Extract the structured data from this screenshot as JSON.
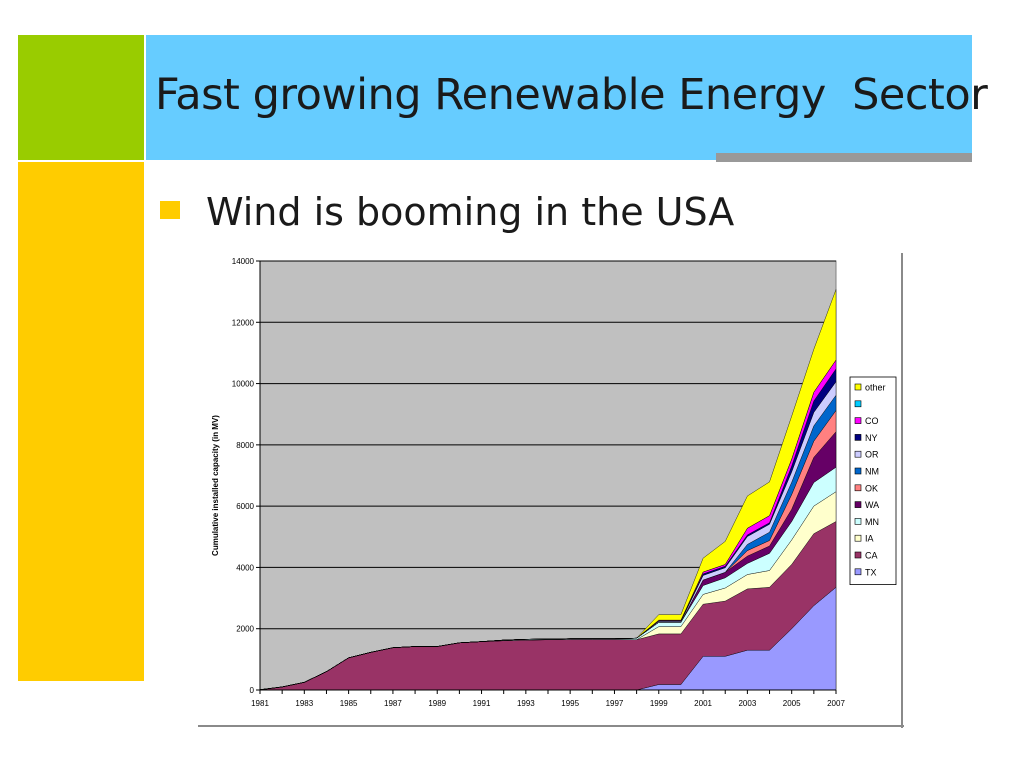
{
  "slide": {
    "title": "Fast growing Renewable Energy  Sector",
    "bullet": "Wind is booming in the USA"
  },
  "chart_data": {
    "type": "area",
    "stacked": true,
    "ylabel": "Cumulative installed capacity (in MV)",
    "xlabel": "",
    "ylim": [
      0,
      14000
    ],
    "yticks": [
      0,
      2000,
      4000,
      6000,
      8000,
      10000,
      12000,
      14000
    ],
    "x": [
      1981,
      1982,
      1983,
      1984,
      1985,
      1986,
      1987,
      1988,
      1989,
      1990,
      1991,
      1992,
      1993,
      1994,
      1995,
      1996,
      1997,
      1998,
      1999,
      2000,
      2001,
      2002,
      2003,
      2004,
      2005,
      2006,
      2007
    ],
    "xtick_labels": [
      "1981",
      "1983",
      "1985",
      "1987",
      "1989",
      "1991",
      "1993",
      "1995",
      "1997",
      "1999",
      "2001",
      "2003",
      "2005",
      "2007"
    ],
    "grid": true,
    "plot_background": "#c0c0c0",
    "legend_position": "right",
    "series": [
      {
        "name": "TX",
        "color": "#9999ff",
        "values": [
          0,
          0,
          0,
          0,
          0,
          0,
          0,
          0,
          0,
          0,
          0,
          0,
          0,
          0,
          0,
          0,
          0,
          0,
          180,
          180,
          1100,
          1100,
          1300,
          1300,
          2000,
          2750,
          3350
        ]
      },
      {
        "name": "CA",
        "color": "#993366",
        "values": [
          10,
          100,
          250,
          600,
          1050,
          1230,
          1380,
          1420,
          1420,
          1540,
          1580,
          1610,
          1630,
          1640,
          1650,
          1650,
          1650,
          1640,
          1650,
          1650,
          1700,
          1800,
          2000,
          2050,
          2100,
          2350,
          2150
        ]
      },
      {
        "name": "IA",
        "color": "#ffffcc",
        "values": [
          0,
          0,
          0,
          0,
          0,
          0,
          0,
          0,
          0,
          0,
          0,
          0,
          0,
          0,
          0,
          0,
          0,
          0,
          240,
          240,
          320,
          430,
          470,
          550,
          800,
          900,
          970
        ]
      },
      {
        "name": "MN",
        "color": "#ccffff",
        "values": [
          0,
          0,
          0,
          0,
          0,
          0,
          0,
          0,
          0,
          0,
          0,
          20,
          25,
          25,
          25,
          25,
          25,
          50,
          140,
          140,
          290,
          330,
          360,
          560,
          600,
          770,
          800
        ]
      },
      {
        "name": "WA",
        "color": "#660066",
        "values": [
          0,
          0,
          0,
          0,
          0,
          0,
          0,
          0,
          0,
          0,
          0,
          0,
          0,
          0,
          0,
          0,
          0,
          0,
          0,
          0,
          180,
          180,
          240,
          240,
          400,
          820,
          1160
        ]
      },
      {
        "name": "OK",
        "color": "#ff8080",
        "values": [
          0,
          0,
          0,
          0,
          0,
          0,
          0,
          0,
          0,
          0,
          0,
          0,
          0,
          0,
          0,
          0,
          0,
          0,
          0,
          0,
          0,
          0,
          180,
          180,
          480,
          530,
          690
        ]
      },
      {
        "name": "NM",
        "color": "#0066cc",
        "values": [
          0,
          0,
          0,
          0,
          0,
          0,
          0,
          0,
          0,
          0,
          0,
          0,
          0,
          0,
          0,
          0,
          0,
          0,
          0,
          0,
          0,
          0,
          200,
          270,
          400,
          500,
          500
        ]
      },
      {
        "name": "OR",
        "color": "#ccccff",
        "values": [
          0,
          0,
          0,
          0,
          0,
          0,
          0,
          0,
          0,
          0,
          0,
          0,
          0,
          0,
          0,
          0,
          0,
          0,
          30,
          30,
          150,
          150,
          260,
          260,
          340,
          440,
          440
        ]
      },
      {
        "name": "NY",
        "color": "#000080",
        "values": [
          0,
          0,
          0,
          0,
          0,
          0,
          0,
          0,
          0,
          0,
          0,
          0,
          0,
          0,
          0,
          0,
          0,
          0,
          20,
          20,
          50,
          50,
          50,
          50,
          190,
          370,
          420
        ]
      },
      {
        "name": "CO",
        "color": "#ff00ff",
        "values": [
          0,
          0,
          0,
          0,
          0,
          0,
          0,
          0,
          0,
          0,
          0,
          0,
          0,
          0,
          0,
          0,
          0,
          0,
          20,
          20,
          60,
          60,
          220,
          230,
          230,
          290,
          290
        ]
      },
      {
        "name": "",
        "color": "#00ccff",
        "values": [
          0,
          0,
          0,
          0,
          0,
          0,
          0,
          0,
          0,
          0,
          0,
          0,
          0,
          0,
          0,
          0,
          0,
          0,
          0,
          0,
          0,
          0,
          0,
          0,
          0,
          0,
          0
        ]
      },
      {
        "name": "other",
        "color": "#ffff00",
        "values": [
          0,
          0,
          0,
          0,
          0,
          0,
          0,
          0,
          0,
          0,
          0,
          0,
          0,
          0,
          0,
          0,
          0,
          0,
          180,
          180,
          450,
          750,
          1050,
          1100,
          1400,
          1400,
          2300
        ]
      }
    ]
  }
}
